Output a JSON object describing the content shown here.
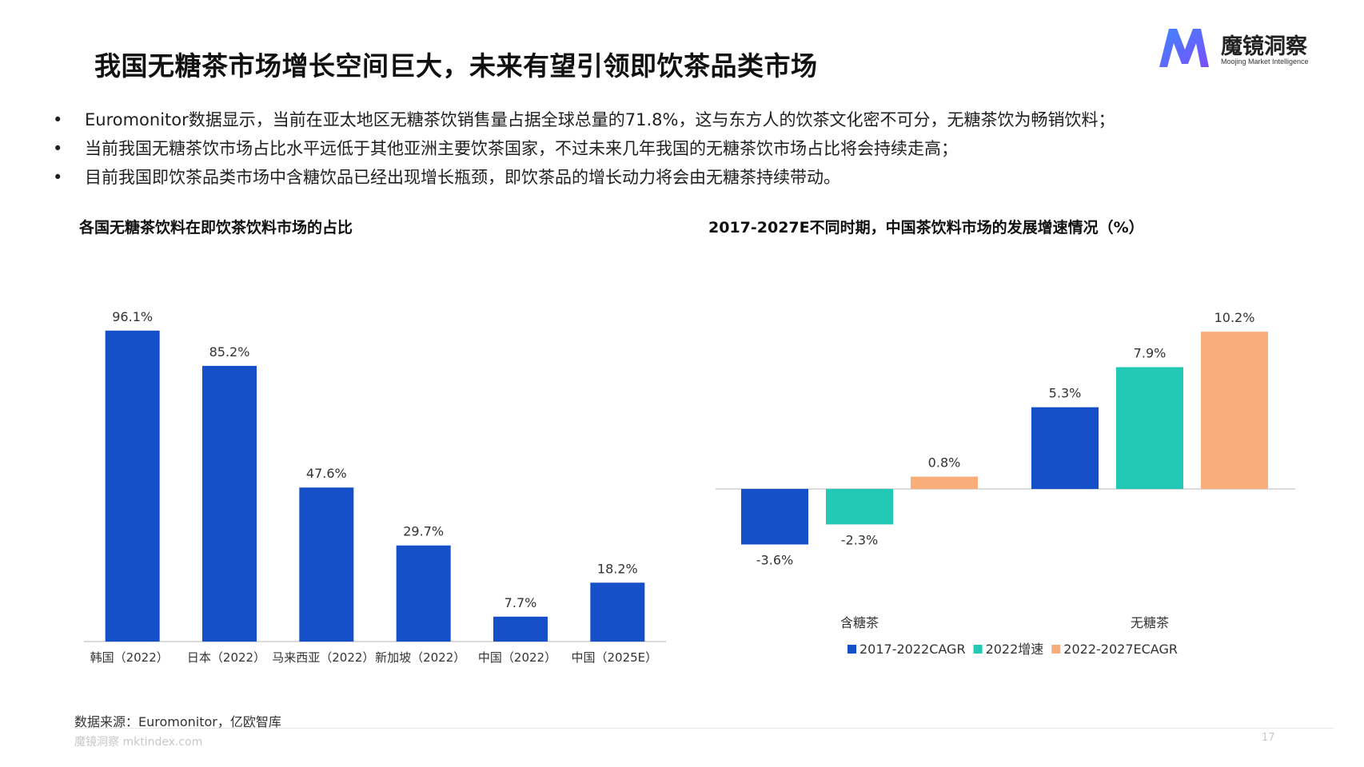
{
  "slide_title": "我国无糖茶市场增长空间巨大，未来有望引领即饮茶品类市场",
  "logo": {
    "name": "魔镜洞察",
    "subtitle": "Moojing Market Intelligence"
  },
  "bullets": [
    "Euromonitor数据显示，当前在亚太地区无糖茶饮销售量占据全球总量的71.8%，这与东方人的饮茶文化密不可分，无糖茶饮为畅销饮料；",
    "当前我国无糖茶饮市场占比水平远低于其他亚洲主要饮茶国家，不过未来几年我国的无糖茶饮市场占比将会持续走高；",
    "目前我国即饮茶品类市场中含糖饮品已经出现增长瓶颈，即饮茶品的增长动力将会由无糖茶持续带动。"
  ],
  "bullet_symbol": "•",
  "source": "数据来源：Euromonitor，亿欧智库",
  "footer_site": "魔镜洞察 mktindex.com",
  "page_number": "17",
  "colors": {
    "blue": "#1550c8",
    "teal": "#22c9b5",
    "orange": "#f9ad7a"
  },
  "chart_data": [
    {
      "type": "bar",
      "title": "各国无糖茶饮料在即饮茶饮料市场的占比",
      "categories": [
        "韩国（2022）",
        "日本（2022）",
        "马来西亚（2022）",
        "新加坡（2022）",
        "中国（2022）",
        "中国（2025E）"
      ],
      "values": [
        96.1,
        85.2,
        47.6,
        29.7,
        7.7,
        18.2
      ],
      "labels": [
        "96.1%",
        "85.2%",
        "47.6%",
        "29.7%",
        "7.7%",
        "18.2%"
      ],
      "ylim": [
        0,
        100
      ],
      "grid": false,
      "legend": false
    },
    {
      "type": "bar",
      "title": "2017-2027E不同时期，中国茶饮料市场的发展增速情况（%）",
      "categories": [
        "含糖茶",
        "无糖茶"
      ],
      "series": [
        {
          "name": "2017-2022CAGR",
          "values": [
            -3.6,
            5.3
          ],
          "labels": [
            "-3.6%",
            "5.3%"
          ]
        },
        {
          "name": "2022增速",
          "values": [
            -2.3,
            7.9
          ],
          "labels": [
            "-2.3%",
            "7.9%"
          ]
        },
        {
          "name": "2022-2027ECAGR",
          "values": [
            0.8,
            10.2
          ],
          "labels": [
            "0.8%",
            "10.2%"
          ]
        }
      ],
      "ylim": [
        -5,
        11
      ],
      "grid": false,
      "legend": "bottom"
    }
  ]
}
